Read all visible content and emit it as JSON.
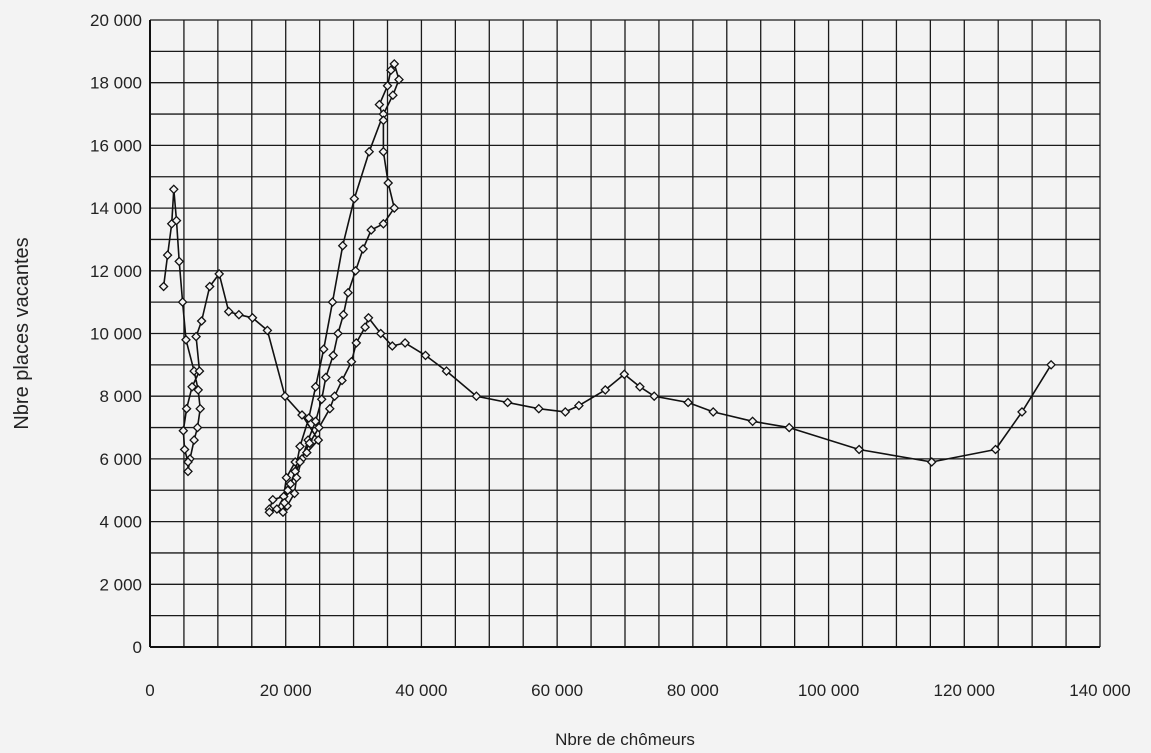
{
  "chart_data": {
    "type": "scatter",
    "title": "",
    "xlabel": "Nbre de chômeurs",
    "ylabel": "Nbre places vacantes",
    "xlim": [
      0,
      140000
    ],
    "ylim": [
      0,
      20000
    ],
    "x_ticks": [
      0,
      20000,
      40000,
      60000,
      80000,
      100000,
      120000,
      140000
    ],
    "x_tick_labels": [
      "0",
      "20 000",
      "40 000",
      "60 000",
      "80 000",
      "100 000",
      "120 000",
      "140 000"
    ],
    "y_ticks": [
      0,
      2000,
      4000,
      6000,
      8000,
      10000,
      12000,
      14000,
      16000,
      18000,
      20000
    ],
    "y_tick_labels": [
      "0",
      "2 000",
      "4 000",
      "6 000",
      "8 000",
      "10 000",
      "12 000",
      "14 000",
      "16 000",
      "18 000",
      "20 000"
    ],
    "grid": true,
    "marker": "open-diamond",
    "connected": true,
    "colors": {
      "line": "#111111",
      "grid": "#1a1a1a",
      "background": "#f3f3f3"
    },
    "x": [
      2000,
      2600,
      3200,
      3500,
      3900,
      4300,
      4800,
      5300,
      6500,
      7100,
      7400,
      7000,
      6500,
      5900,
      5600,
      5600,
      5100,
      4900,
      5400,
      6200,
      7300,
      6800,
      7600,
      8800,
      10200,
      11600,
      13100,
      15100,
      17300,
      19900,
      22400,
      24800,
      23100,
      21400,
      20100,
      19700,
      18100,
      17600,
      17600,
      18700,
      20300,
      21400,
      22100,
      23400,
      24400,
      25600,
      26900,
      28400,
      30100,
      32300,
      34400,
      35800,
      36700,
      36000,
      35500,
      35000,
      33800,
      34400,
      34400,
      35100,
      36000,
      34400,
      32600,
      31400,
      30300,
      29200,
      28500,
      27700,
      27000,
      25900,
      25300,
      24400,
      23300,
      22400,
      21600,
      21300,
      20200,
      19600,
      19800,
      20700,
      22100,
      23500,
      24900,
      26500,
      27200,
      28300,
      29700,
      30400,
      31700,
      32200,
      34000,
      35700,
      37600,
      40600,
      43700,
      48100,
      52700,
      57300,
      61200,
      63200,
      67100,
      69900,
      72200,
      74300,
      79300,
      83000,
      88800,
      94200,
      104500,
      115200,
      124600,
      128500,
      132800
    ],
    "y": [
      11500,
      12500,
      13500,
      14600,
      13600,
      12300,
      11000,
      9800,
      8800,
      8200,
      7600,
      7000,
      6600,
      6000,
      5600,
      5900,
      6300,
      6900,
      7600,
      8300,
      8800,
      9900,
      10400,
      11500,
      11900,
      10700,
      10600,
      10500,
      10100,
      8000,
      7400,
      6600,
      6200,
      5900,
      5400,
      4800,
      4700,
      4400,
      4300,
      4400,
      5000,
      5600,
      6400,
      7300,
      8300,
      9500,
      11000,
      12800,
      14300,
      15800,
      17000,
      17600,
      18100,
      18600,
      18400,
      17900,
      17300,
      16800,
      15800,
      14800,
      14000,
      13500,
      13300,
      12700,
      12000,
      11300,
      10600,
      10000,
      9300,
      8600,
      7900,
      7200,
      6600,
      6000,
      5400,
      4900,
      4500,
      4300,
      4600,
      5200,
      5900,
      6500,
      7000,
      7600,
      8000,
      8500,
      9100,
      9700,
      10200,
      10500,
      10000,
      9600,
      9700,
      9300,
      8800,
      8000,
      7800,
      7600,
      7500,
      7700,
      8200,
      8700,
      8300,
      8000,
      7800,
      7500,
      7200,
      7000,
      6300,
      5900,
      6300,
      7500,
      9000
    ]
  }
}
